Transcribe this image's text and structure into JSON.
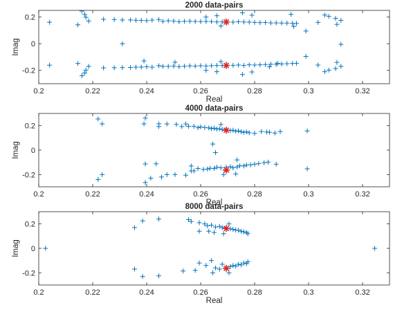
{
  "chart_data": [
    {
      "type": "scatter",
      "title": "2000 data-pairs",
      "xlabel": "Real",
      "ylabel": "Imag",
      "xlim": [
        0.2,
        0.33
      ],
      "ylim": [
        -0.3,
        0.25
      ],
      "xticks": [
        0.2,
        0.22,
        0.24,
        0.26,
        0.28,
        0.3,
        0.32
      ],
      "xtick_labels": [
        "0.2",
        "0.22",
        "0.24",
        "0.26",
        "0.28",
        "0.3",
        "0.32"
      ],
      "yticks": [
        -0.2,
        0,
        0.2
      ],
      "ytick_labels": [
        "-0.2",
        "0",
        "0.2"
      ],
      "grid": false,
      "legend": "none",
      "series": [
        {
          "marker": "+",
          "color": "#0072BD",
          "points": [
            [
              0.204,
              0.161
            ],
            [
              0.216,
              0.245
            ],
            [
              0.217,
              0.22
            ],
            [
              0.2175,
              0.198
            ],
            [
              0.2185,
              0.17
            ],
            [
              0.2145,
              0.142
            ],
            [
              0.224,
              0.183
            ],
            [
              0.228,
              0.181
            ],
            [
              0.231,
              0.178
            ],
            [
              0.234,
              0.178
            ],
            [
              0.236,
              0.176
            ],
            [
              0.238,
              0.175
            ],
            [
              0.24,
              0.173
            ],
            [
              0.242,
              0.177
            ],
            [
              0.2445,
              0.181
            ],
            [
              0.246,
              0.168
            ],
            [
              0.248,
              0.172
            ],
            [
              0.25,
              0.17
            ],
            [
              0.252,
              0.165
            ],
            [
              0.254,
              0.168
            ],
            [
              0.256,
              0.169
            ],
            [
              0.258,
              0.167
            ],
            [
              0.26,
              0.166
            ],
            [
              0.262,
              0.167
            ],
            [
              0.264,
              0.166
            ],
            [
              0.266,
              0.163
            ],
            [
              0.268,
              0.164
            ],
            [
              0.272,
              0.162
            ],
            [
              0.274,
              0.165
            ],
            [
              0.276,
              0.163
            ],
            [
              0.278,
              0.162
            ],
            [
              0.28,
              0.16
            ],
            [
              0.282,
              0.158
            ],
            [
              0.284,
              0.159
            ],
            [
              0.286,
              0.156
            ],
            [
              0.288,
              0.156
            ],
            [
              0.29,
              0.155
            ],
            [
              0.292,
              0.155
            ],
            [
              0.294,
              0.153
            ],
            [
              0.2955,
              0.152
            ],
            [
              0.266,
              0.21
            ],
            [
              0.262,
              0.2
            ],
            [
              0.2675,
              0.133
            ],
            [
              0.2755,
              0.232
            ],
            [
              0.279,
              0.214
            ],
            [
              0.2935,
              0.22
            ],
            [
              0.2945,
              0.13
            ],
            [
              0.299,
              0.095
            ],
            [
              0.3035,
              0.16
            ],
            [
              0.306,
              0.215
            ],
            [
              0.3075,
              0.205
            ],
            [
              0.31,
              0.19
            ],
            [
              0.312,
              0.175
            ],
            [
              0.3105,
              0.145
            ],
            [
              0.231,
              0.0
            ],
            [
              0.312,
              -0.005
            ],
            [
              0.204,
              -0.161
            ],
            [
              0.216,
              -0.24
            ],
            [
              0.217,
              -0.22
            ],
            [
              0.2175,
              -0.198
            ],
            [
              0.2185,
              -0.17
            ],
            [
              0.2145,
              -0.148
            ],
            [
              0.224,
              -0.181
            ],
            [
              0.228,
              -0.18
            ],
            [
              0.231,
              -0.179
            ],
            [
              0.234,
              -0.178
            ],
            [
              0.236,
              -0.176
            ],
            [
              0.238,
              -0.175
            ],
            [
              0.24,
              -0.173
            ],
            [
              0.242,
              -0.176
            ],
            [
              0.2445,
              -0.165
            ],
            [
              0.246,
              -0.17
            ],
            [
              0.248,
              -0.17
            ],
            [
              0.25,
              -0.168
            ],
            [
              0.252,
              -0.172
            ],
            [
              0.254,
              -0.169
            ],
            [
              0.256,
              -0.166
            ],
            [
              0.258,
              -0.168
            ],
            [
              0.26,
              -0.165
            ],
            [
              0.262,
              -0.167
            ],
            [
              0.264,
              -0.165
            ],
            [
              0.266,
              -0.163
            ],
            [
              0.268,
              -0.164
            ],
            [
              0.272,
              -0.162
            ],
            [
              0.274,
              -0.16
            ],
            [
              0.276,
              -0.163
            ],
            [
              0.278,
              -0.158
            ],
            [
              0.28,
              -0.16
            ],
            [
              0.282,
              -0.158
            ],
            [
              0.284,
              -0.156
            ],
            [
              0.286,
              -0.154
            ],
            [
              0.288,
              -0.155
            ],
            [
              0.29,
              -0.152
            ],
            [
              0.292,
              -0.15
            ],
            [
              0.294,
              -0.148
            ],
            [
              0.2955,
              -0.147
            ],
            [
              0.266,
              -0.21
            ],
            [
              0.262,
              -0.2
            ],
            [
              0.2675,
              -0.134
            ],
            [
              0.2755,
              -0.231
            ],
            [
              0.279,
              -0.212
            ],
            [
              0.2855,
              -0.173
            ],
            [
              0.2885,
              -0.147
            ],
            [
              0.299,
              -0.095
            ],
            [
              0.3035,
              -0.16
            ],
            [
              0.306,
              -0.21
            ],
            [
              0.3075,
              -0.198
            ],
            [
              0.31,
              -0.186
            ],
            [
              0.312,
              -0.17
            ],
            [
              0.3105,
              -0.14
            ],
            [
              0.2505,
              -0.139
            ],
            [
              0.239,
              -0.129
            ]
          ]
        },
        {
          "marker": "*",
          "color": "#D62728",
          "points": [
            [
              0.2695,
              0.163
            ],
            [
              0.2695,
              -0.163
            ]
          ]
        }
      ]
    },
    {
      "type": "scatter",
      "title": "4000 data-pairs",
      "xlabel": "Real",
      "ylabel": "Imag",
      "xlim": [
        0.2,
        0.33
      ],
      "ylim": [
        -0.3,
        0.3
      ],
      "xticks": [
        0.2,
        0.22,
        0.24,
        0.26,
        0.28,
        0.3,
        0.32
      ],
      "xtick_labels": [
        "0.2",
        "0.22",
        "0.24",
        "0.26",
        "0.28",
        "0.3",
        "0.32"
      ],
      "yticks": [
        -0.2,
        0,
        0.2
      ],
      "ytick_labels": [
        "-0.2",
        "0",
        "0.2"
      ],
      "grid": false,
      "legend": "none",
      "series": [
        {
          "marker": "+",
          "color": "#0072BD",
          "points": [
            [
              0.222,
              0.255
            ],
            [
              0.2235,
              0.215
            ],
            [
              0.2395,
              0.262
            ],
            [
              0.239,
              0.215
            ],
            [
              0.2445,
              0.215
            ],
            [
              0.2445,
              0.193
            ],
            [
              0.2475,
              0.214
            ],
            [
              0.251,
              0.21
            ],
            [
              0.253,
              0.193
            ],
            [
              0.2545,
              0.214
            ],
            [
              0.2555,
              0.195
            ],
            [
              0.2575,
              0.195
            ],
            [
              0.259,
              0.183
            ],
            [
              0.26,
              0.19
            ],
            [
              0.2615,
              0.185
            ],
            [
              0.263,
              0.182
            ],
            [
              0.264,
              0.176
            ],
            [
              0.265,
              0.18
            ],
            [
              0.266,
              0.172
            ],
            [
              0.267,
              0.175
            ],
            [
              0.268,
              0.168
            ],
            [
              0.271,
              0.16
            ],
            [
              0.272,
              0.163
            ],
            [
              0.273,
              0.154
            ],
            [
              0.274,
              0.158
            ],
            [
              0.275,
              0.15
            ],
            [
              0.276,
              0.146
            ],
            [
              0.277,
              0.149
            ],
            [
              0.278,
              0.142
            ],
            [
              0.28,
              0.137
            ],
            [
              0.2825,
              0.152
            ],
            [
              0.2845,
              0.148
            ],
            [
              0.2855,
              0.146
            ],
            [
              0.2875,
              0.14
            ],
            [
              0.2895,
              0.152
            ],
            [
              0.2995,
              0.157
            ],
            [
              0.2675,
              0.21
            ],
            [
              0.2645,
              0.05
            ],
            [
              0.2655,
              -0.02
            ],
            [
              0.2235,
              -0.2
            ],
            [
              0.222,
              -0.24
            ],
            [
              0.2395,
              -0.265
            ],
            [
              0.2415,
              -0.23
            ],
            [
              0.2455,
              -0.22
            ],
            [
              0.2475,
              -0.2
            ],
            [
              0.2505,
              -0.2
            ],
            [
              0.2545,
              -0.205
            ],
            [
              0.2565,
              -0.17
            ],
            [
              0.2575,
              -0.17
            ],
            [
              0.259,
              -0.15
            ],
            [
              0.261,
              -0.158
            ],
            [
              0.2625,
              -0.155
            ],
            [
              0.2635,
              -0.148
            ],
            [
              0.265,
              -0.15
            ],
            [
              0.266,
              -0.14
            ],
            [
              0.2675,
              -0.145
            ],
            [
              0.2695,
              -0.14
            ],
            [
              0.271,
              -0.135
            ],
            [
              0.272,
              -0.145
            ],
            [
              0.2735,
              -0.138
            ],
            [
              0.2745,
              -0.128
            ],
            [
              0.276,
              -0.13
            ],
            [
              0.277,
              -0.122
            ],
            [
              0.2785,
              -0.12
            ],
            [
              0.28,
              -0.115
            ],
            [
              0.2815,
              -0.11
            ],
            [
              0.2835,
              -0.103
            ],
            [
              0.285,
              -0.098
            ],
            [
              0.288,
              -0.115
            ],
            [
              0.2995,
              -0.153
            ],
            [
              0.2565,
              -0.13
            ],
            [
              0.2395,
              -0.113
            ],
            [
              0.2435,
              -0.112
            ],
            [
              0.2735,
              -0.08
            ],
            [
              0.2685,
              -0.2
            ],
            [
              0.273,
              -0.195
            ]
          ]
        },
        {
          "marker": "*",
          "color": "#D62728",
          "points": [
            [
              0.2695,
              0.163
            ],
            [
              0.2695,
              -0.163
            ]
          ]
        }
      ]
    },
    {
      "type": "scatter",
      "title": "8000 data-pairs",
      "xlabel": "Real",
      "ylabel": "Imag",
      "xlim": [
        0.2,
        0.33
      ],
      "ylim": [
        -0.3,
        0.3
      ],
      "xticks": [
        0.2,
        0.22,
        0.24,
        0.26,
        0.28,
        0.3,
        0.32
      ],
      "xtick_labels": [
        "0.2",
        "0.22",
        "0.24",
        "0.26",
        "0.28",
        "0.3",
        "0.32"
      ],
      "yticks": [
        -0.2,
        0,
        0.2
      ],
      "ytick_labels": [
        "-0.2",
        "0",
        "0.2"
      ],
      "grid": false,
      "legend": "none",
      "series": [
        {
          "marker": "+",
          "color": "#0072BD",
          "points": [
            [
              0.2025,
              0.0
            ],
            [
              0.3245,
              0.0
            ],
            [
              0.2355,
              0.17
            ],
            [
              0.2385,
              0.225
            ],
            [
              0.2445,
              0.24
            ],
            [
              0.2555,
              0.235
            ],
            [
              0.2565,
              0.22
            ],
            [
              0.2595,
              0.21
            ],
            [
              0.2615,
              0.2
            ],
            [
              0.2625,
              0.185
            ],
            [
              0.264,
              0.19
            ],
            [
              0.2655,
              0.175
            ],
            [
              0.267,
              0.18
            ],
            [
              0.268,
              0.17
            ],
            [
              0.271,
              0.16
            ],
            [
              0.272,
              0.155
            ],
            [
              0.273,
              0.15
            ],
            [
              0.274,
              0.148
            ],
            [
              0.275,
              0.14
            ],
            [
              0.276,
              0.135
            ],
            [
              0.277,
              0.13
            ],
            [
              0.2775,
              0.12
            ],
            [
              0.2595,
              0.14
            ],
            [
              0.263,
              0.14
            ],
            [
              0.265,
              0.13
            ],
            [
              0.2685,
              0.12
            ],
            [
              0.2705,
              0.2
            ],
            [
              0.2355,
              -0.17
            ],
            [
              0.2385,
              -0.23
            ],
            [
              0.2445,
              -0.225
            ],
            [
              0.2535,
              -0.185
            ],
            [
              0.258,
              -0.18
            ],
            [
              0.2595,
              -0.12
            ],
            [
              0.262,
              -0.14
            ],
            [
              0.264,
              -0.1
            ],
            [
              0.2645,
              -0.2
            ],
            [
              0.2655,
              -0.16
            ],
            [
              0.267,
              -0.17
            ],
            [
              0.268,
              -0.13
            ],
            [
              0.271,
              -0.15
            ],
            [
              0.272,
              -0.14
            ],
            [
              0.273,
              -0.145
            ],
            [
              0.274,
              -0.13
            ],
            [
              0.275,
              -0.135
            ],
            [
              0.276,
              -0.12
            ],
            [
              0.277,
              -0.125
            ],
            [
              0.2775,
              -0.11
            ],
            [
              0.2705,
              -0.2
            ]
          ]
        },
        {
          "marker": "*",
          "color": "#D62728",
          "points": [
            [
              0.2695,
              0.163
            ],
            [
              0.2695,
              -0.163
            ]
          ]
        }
      ]
    }
  ]
}
